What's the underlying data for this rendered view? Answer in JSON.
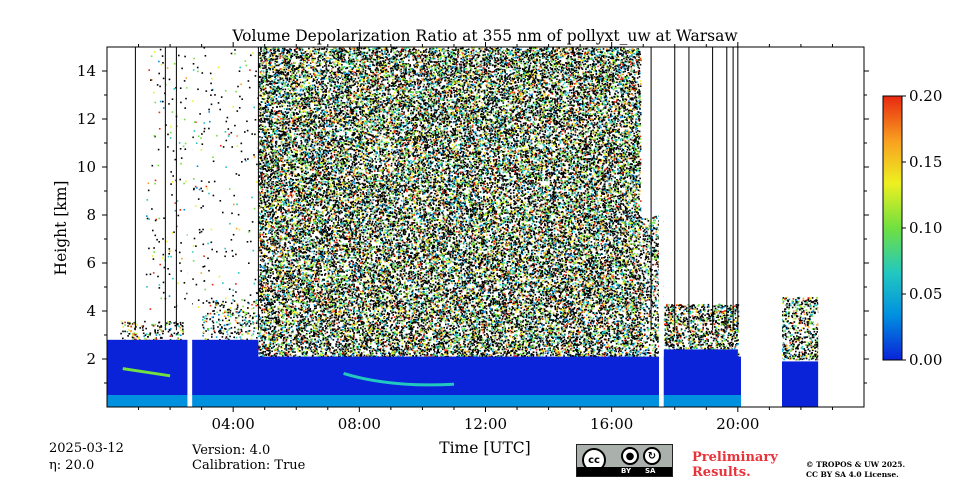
{
  "chart_data": {
    "type": "heatmap",
    "title": "Volume Depolarization Ratio at 355 nm of pollyxt_uw at Warsaw",
    "xlabel": "Time [UTC]",
    "ylabel": "Height [km]",
    "xlim_hours": [
      0,
      24
    ],
    "ylim": [
      0,
      15
    ],
    "x_ticks": [
      {
        "hour": 4,
        "label": "04:00"
      },
      {
        "hour": 8,
        "label": "08:00"
      },
      {
        "hour": 12,
        "label": "12:00"
      },
      {
        "hour": 16,
        "label": "16:00"
      },
      {
        "hour": 20,
        "label": "20:00"
      }
    ],
    "y_ticks": [
      {
        "value": 2,
        "label": "2"
      },
      {
        "value": 4,
        "label": "4"
      },
      {
        "value": 6,
        "label": "6"
      },
      {
        "value": 8,
        "label": "8"
      },
      {
        "value": 10,
        "label": "10"
      },
      {
        "value": 12,
        "label": "12"
      },
      {
        "value": 14,
        "label": "14"
      }
    ],
    "colorbar": {
      "min": 0.0,
      "max": 0.2,
      "ticks": [
        {
          "value": 0.0,
          "label": "0.00"
        },
        {
          "value": 0.05,
          "label": "0.05"
        },
        {
          "value": 0.1,
          "label": "0.10"
        },
        {
          "value": 0.15,
          "label": "0.15"
        },
        {
          "value": 0.2,
          "label": "0.20"
        }
      ],
      "colors": [
        "#0a22d8",
        "#0090e0",
        "#22c8c0",
        "#70e040",
        "#eef020",
        "#f8a020",
        "#e82810"
      ]
    },
    "no_data_intervals_hours": [
      [
        2.55,
        2.7
      ],
      [
        17.5,
        17.65
      ],
      [
        20.1,
        21.4
      ],
      [
        22.55,
        24
      ]
    ],
    "vertical_profile_marks_hours": [
      0.9,
      1.85,
      2.2,
      4.8,
      17.25,
      18.0,
      18.45,
      19.2,
      19.65,
      19.85,
      20.0
    ]
  },
  "footer": {
    "date": "2025-03-12",
    "eta": "η: 20.0",
    "version": "Version: 4.0",
    "calibration": "Calibration: True",
    "preliminary_line1": "Preliminary",
    "preliminary_line2": "Results.",
    "copyright_line1": "© TROPOS & UW 2025.",
    "copyright_line2": "CC BY SA 4.0 License.",
    "license_badge": {
      "cc": "cc",
      "by": "BY",
      "sa": "SA"
    }
  }
}
